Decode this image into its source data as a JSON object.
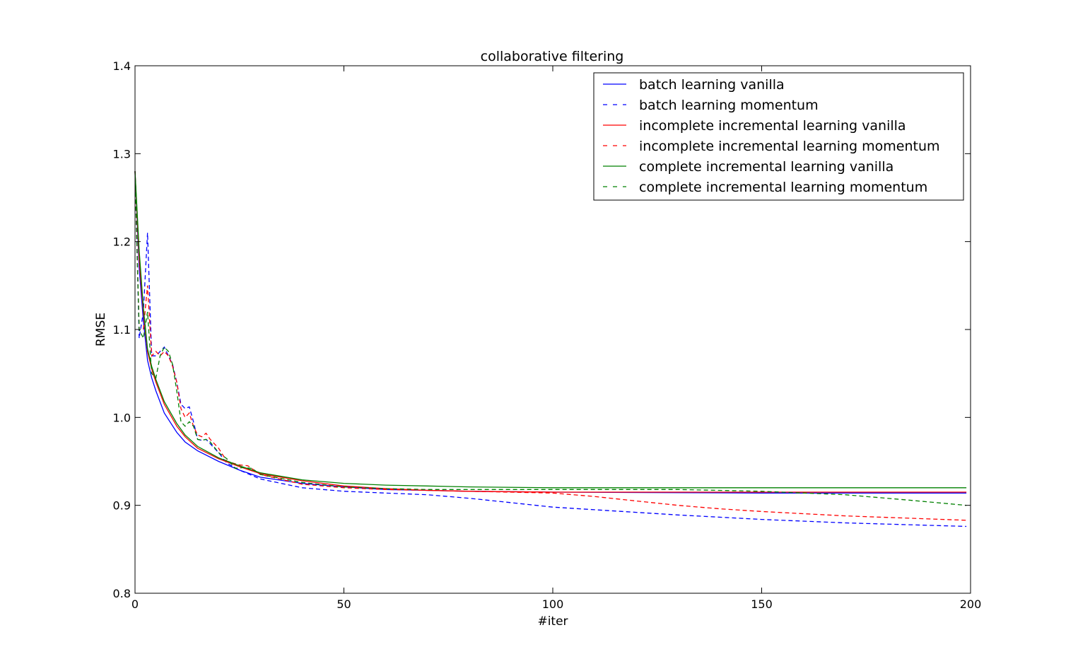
{
  "chart_data": {
    "type": "line",
    "title": "collaborative filtering",
    "xlabel": "#iter",
    "ylabel": "RMSE",
    "xlim": [
      0,
      200
    ],
    "ylim": [
      0.8,
      1.4
    ],
    "xticks": [
      0,
      50,
      100,
      150,
      200
    ],
    "yticks": [
      0.8,
      0.9,
      1.0,
      1.1,
      1.2,
      1.3,
      1.4
    ],
    "ytick_labels": [
      "0.8",
      "0.9",
      "1.0",
      "1.1",
      "1.2",
      "1.3",
      "1.4"
    ],
    "grid": false,
    "legend_position": "top-right",
    "series": [
      {
        "name": "batch learning vanilla",
        "color": "#0000ff",
        "dash": "solid",
        "points": [
          [
            0,
            1.28
          ],
          [
            1,
            1.17
          ],
          [
            2,
            1.11
          ],
          [
            3,
            1.065
          ],
          [
            4,
            1.045
          ],
          [
            5,
            1.03
          ],
          [
            7,
            1.005
          ],
          [
            10,
            0.983
          ],
          [
            12,
            0.972
          ],
          [
            15,
            0.962
          ],
          [
            20,
            0.95
          ],
          [
            25,
            0.94
          ],
          [
            30,
            0.932
          ],
          [
            40,
            0.925
          ],
          [
            50,
            0.921
          ],
          [
            60,
            0.918
          ],
          [
            70,
            0.917
          ],
          [
            80,
            0.916
          ],
          [
            100,
            0.915
          ],
          [
            150,
            0.914
          ],
          [
            199,
            0.914
          ]
        ]
      },
      {
        "name": "batch learning momentum",
        "color": "#0000ff",
        "dash": "dashed",
        "points": [
          [
            0,
            1.28
          ],
          [
            1,
            1.09
          ],
          [
            2,
            1.12
          ],
          [
            3,
            1.21
          ],
          [
            4,
            1.07
          ],
          [
            5,
            1.07
          ],
          [
            6,
            1.075
          ],
          [
            7,
            1.08
          ],
          [
            8,
            1.07
          ],
          [
            9,
            1.06
          ],
          [
            10,
            1.04
          ],
          [
            11,
            1.015
          ],
          [
            12,
            1.01
          ],
          [
            13,
            1.012
          ],
          [
            14,
            0.995
          ],
          [
            15,
            0.975
          ],
          [
            16,
            0.974
          ],
          [
            17,
            0.975
          ],
          [
            18,
            0.97
          ],
          [
            20,
            0.96
          ],
          [
            22,
            0.948
          ],
          [
            25,
            0.94
          ],
          [
            30,
            0.93
          ],
          [
            40,
            0.92
          ],
          [
            50,
            0.916
          ],
          [
            60,
            0.914
          ],
          [
            70,
            0.912
          ],
          [
            80,
            0.908
          ],
          [
            90,
            0.903
          ],
          [
            100,
            0.898
          ],
          [
            110,
            0.895
          ],
          [
            120,
            0.892
          ],
          [
            130,
            0.889
          ],
          [
            150,
            0.884
          ],
          [
            170,
            0.88
          ],
          [
            199,
            0.876
          ]
        ]
      },
      {
        "name": "incomplete incremental learning vanilla",
        "color": "#ff0000",
        "dash": "solid",
        "points": [
          [
            0,
            1.28
          ],
          [
            1,
            1.18
          ],
          [
            2,
            1.12
          ],
          [
            3,
            1.075
          ],
          [
            4,
            1.055
          ],
          [
            5,
            1.04
          ],
          [
            7,
            1.015
          ],
          [
            10,
            0.99
          ],
          [
            12,
            0.978
          ],
          [
            15,
            0.965
          ],
          [
            20,
            0.953
          ],
          [
            25,
            0.944
          ],
          [
            30,
            0.936
          ],
          [
            40,
            0.928
          ],
          [
            50,
            0.922
          ],
          [
            60,
            0.919
          ],
          [
            70,
            0.917
          ],
          [
            80,
            0.916
          ],
          [
            100,
            0.915
          ],
          [
            150,
            0.915
          ],
          [
            199,
            0.915
          ]
        ]
      },
      {
        "name": "incomplete incremental learning momentum",
        "color": "#ff0000",
        "dash": "dashed",
        "points": [
          [
            0,
            1.28
          ],
          [
            1,
            1.1
          ],
          [
            2,
            1.1
          ],
          [
            3,
            1.15
          ],
          [
            4,
            1.07
          ],
          [
            5,
            1.075
          ],
          [
            6,
            1.07
          ],
          [
            7,
            1.075
          ],
          [
            8,
            1.07
          ],
          [
            9,
            1.058
          ],
          [
            10,
            1.04
          ],
          [
            11,
            1.01
          ],
          [
            12,
            1.0
          ],
          [
            13,
            1.005
          ],
          [
            14,
            0.99
          ],
          [
            15,
            0.98
          ],
          [
            16,
            0.978
          ],
          [
            17,
            0.982
          ],
          [
            18,
            0.975
          ],
          [
            20,
            0.965
          ],
          [
            22,
            0.95
          ],
          [
            25,
            0.946
          ],
          [
            27,
            0.945
          ],
          [
            30,
            0.935
          ],
          [
            40,
            0.924
          ],
          [
            50,
            0.92
          ],
          [
            60,
            0.918
          ],
          [
            70,
            0.917
          ],
          [
            80,
            0.916
          ],
          [
            100,
            0.914
          ],
          [
            110,
            0.91
          ],
          [
            120,
            0.905
          ],
          [
            130,
            0.9
          ],
          [
            140,
            0.896
          ],
          [
            150,
            0.893
          ],
          [
            170,
            0.888
          ],
          [
            199,
            0.883
          ]
        ]
      },
      {
        "name": "complete incremental learning vanilla",
        "color": "#008000",
        "dash": "solid",
        "points": [
          [
            0,
            1.28
          ],
          [
            1,
            1.19
          ],
          [
            2,
            1.125
          ],
          [
            3,
            1.078
          ],
          [
            4,
            1.058
          ],
          [
            5,
            1.043
          ],
          [
            7,
            1.018
          ],
          [
            10,
            0.993
          ],
          [
            12,
            0.98
          ],
          [
            15,
            0.967
          ],
          [
            20,
            0.954
          ],
          [
            25,
            0.945
          ],
          [
            30,
            0.937
          ],
          [
            40,
            0.929
          ],
          [
            50,
            0.925
          ],
          [
            60,
            0.923
          ],
          [
            70,
            0.922
          ],
          [
            80,
            0.921
          ],
          [
            100,
            0.92
          ],
          [
            150,
            0.92
          ],
          [
            199,
            0.92
          ]
        ]
      },
      {
        "name": "complete incremental learning momentum",
        "color": "#008000",
        "dash": "dashed",
        "points": [
          [
            0,
            1.28
          ],
          [
            1,
            1.1
          ],
          [
            2,
            1.09
          ],
          [
            3,
            1.12
          ],
          [
            4,
            1.05
          ],
          [
            5,
            1.045
          ],
          [
            6,
            1.07
          ],
          [
            7,
            1.08
          ],
          [
            8,
            1.075
          ],
          [
            9,
            1.06
          ],
          [
            10,
            1.03
          ],
          [
            11,
            0.995
          ],
          [
            12,
            0.99
          ],
          [
            13,
            0.995
          ],
          [
            14,
            0.99
          ],
          [
            15,
            0.975
          ],
          [
            16,
            0.974
          ],
          [
            17,
            0.975
          ],
          [
            18,
            0.972
          ],
          [
            20,
            0.96
          ],
          [
            22,
            0.953
          ],
          [
            24,
            0.942
          ],
          [
            26,
            0.943
          ],
          [
            28,
            0.942
          ],
          [
            30,
            0.935
          ],
          [
            40,
            0.926
          ],
          [
            50,
            0.921
          ],
          [
            60,
            0.919
          ],
          [
            70,
            0.918
          ],
          [
            80,
            0.918
          ],
          [
            100,
            0.918
          ],
          [
            130,
            0.918
          ],
          [
            150,
            0.916
          ],
          [
            170,
            0.912
          ],
          [
            185,
            0.906
          ],
          [
            199,
            0.9
          ]
        ]
      }
    ]
  }
}
